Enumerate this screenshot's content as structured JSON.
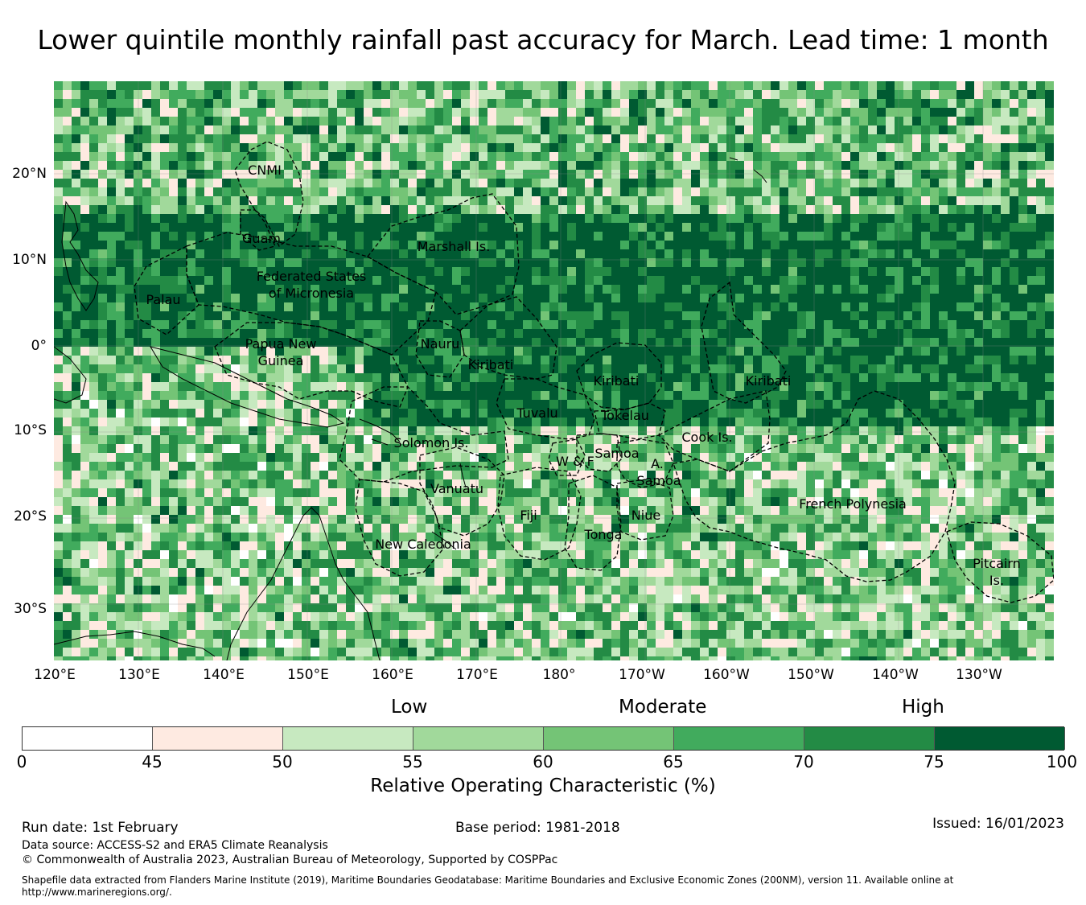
{
  "title": "Lower quintile monthly rainfall past accuracy for March. Lead time: 1 month",
  "map": {
    "lat_labels": [
      "20°N",
      "10°N",
      "0°",
      "10°S",
      "20°S",
      "30°S"
    ],
    "lon_labels": [
      "120°E",
      "130°E",
      "140°E",
      "150°E",
      "160°E",
      "170°E",
      "180°",
      "170°W",
      "160°W",
      "150°W",
      "140°W",
      "130°W"
    ],
    "regions": [
      {
        "name": "CNMI"
      },
      {
        "name": "Guam"
      },
      {
        "name": "Marshall Is."
      },
      {
        "name": "Federated States"
      },
      {
        "name": "of Micronesia"
      },
      {
        "name": "Palau"
      },
      {
        "name": "Papua New"
      },
      {
        "name": "Guinea"
      },
      {
        "name": "Nauru"
      },
      {
        "name": "Kiribati"
      },
      {
        "name": "Kiribati"
      },
      {
        "name": "Kiribati"
      },
      {
        "name": "Tuvalu"
      },
      {
        "name": "Tokelau"
      },
      {
        "name": "Cook Is."
      },
      {
        "name": "Solomon Is."
      },
      {
        "name": "Samoa"
      },
      {
        "name": "W & F"
      },
      {
        "name": "A."
      },
      {
        "name": "Samoa"
      },
      {
        "name": "Vanuatu"
      },
      {
        "name": "Fiji"
      },
      {
        "name": "Niue"
      },
      {
        "name": "Tonga"
      },
      {
        "name": "French Polynesia"
      },
      {
        "name": "New Caledonia"
      },
      {
        "name": "Pitcairn"
      },
      {
        "name": "Is."
      }
    ]
  },
  "legend": {
    "categories": [
      "Low",
      "Moderate",
      "High"
    ],
    "bins": [
      {
        "from": 0,
        "to": 45,
        "color": "#ffffff"
      },
      {
        "from": 45,
        "to": 50,
        "color": "#feeae1"
      },
      {
        "from": 50,
        "to": 55,
        "color": "#c7e9c0"
      },
      {
        "from": 55,
        "to": 60,
        "color": "#a1d99b"
      },
      {
        "from": 60,
        "to": 65,
        "color": "#74c476"
      },
      {
        "from": 65,
        "to": 70,
        "color": "#41ab5d"
      },
      {
        "from": 70,
        "to": 75,
        "color": "#238b45"
      },
      {
        "from": 75,
        "to": 100,
        "color": "#005a32"
      }
    ],
    "ticks": [
      "0",
      "45",
      "50",
      "55",
      "60",
      "65",
      "70",
      "75",
      "100"
    ],
    "title": "Relative Operating Characteristic (%)"
  },
  "footer": {
    "run_date": "Run date: 1st February",
    "base_period": "Base period: 1981-2018",
    "issued": "Issued: 16/01/2023",
    "data_source": "Data source: ACCESS-S2 and ERA5 Climate Reanalysis",
    "copyright": "© Commonwealth of Australia 2023, Australian Bureau of Meteorology, Supported by COSPPac",
    "shapefile": "Shapefile data extracted from Flanders Marine Institute (2019), Maritime Boundaries Geodatabase: Maritime Boundaries and Exclusive Economic Zones (200NM), version 11. Available online at http://www.marineregions.org/."
  }
}
